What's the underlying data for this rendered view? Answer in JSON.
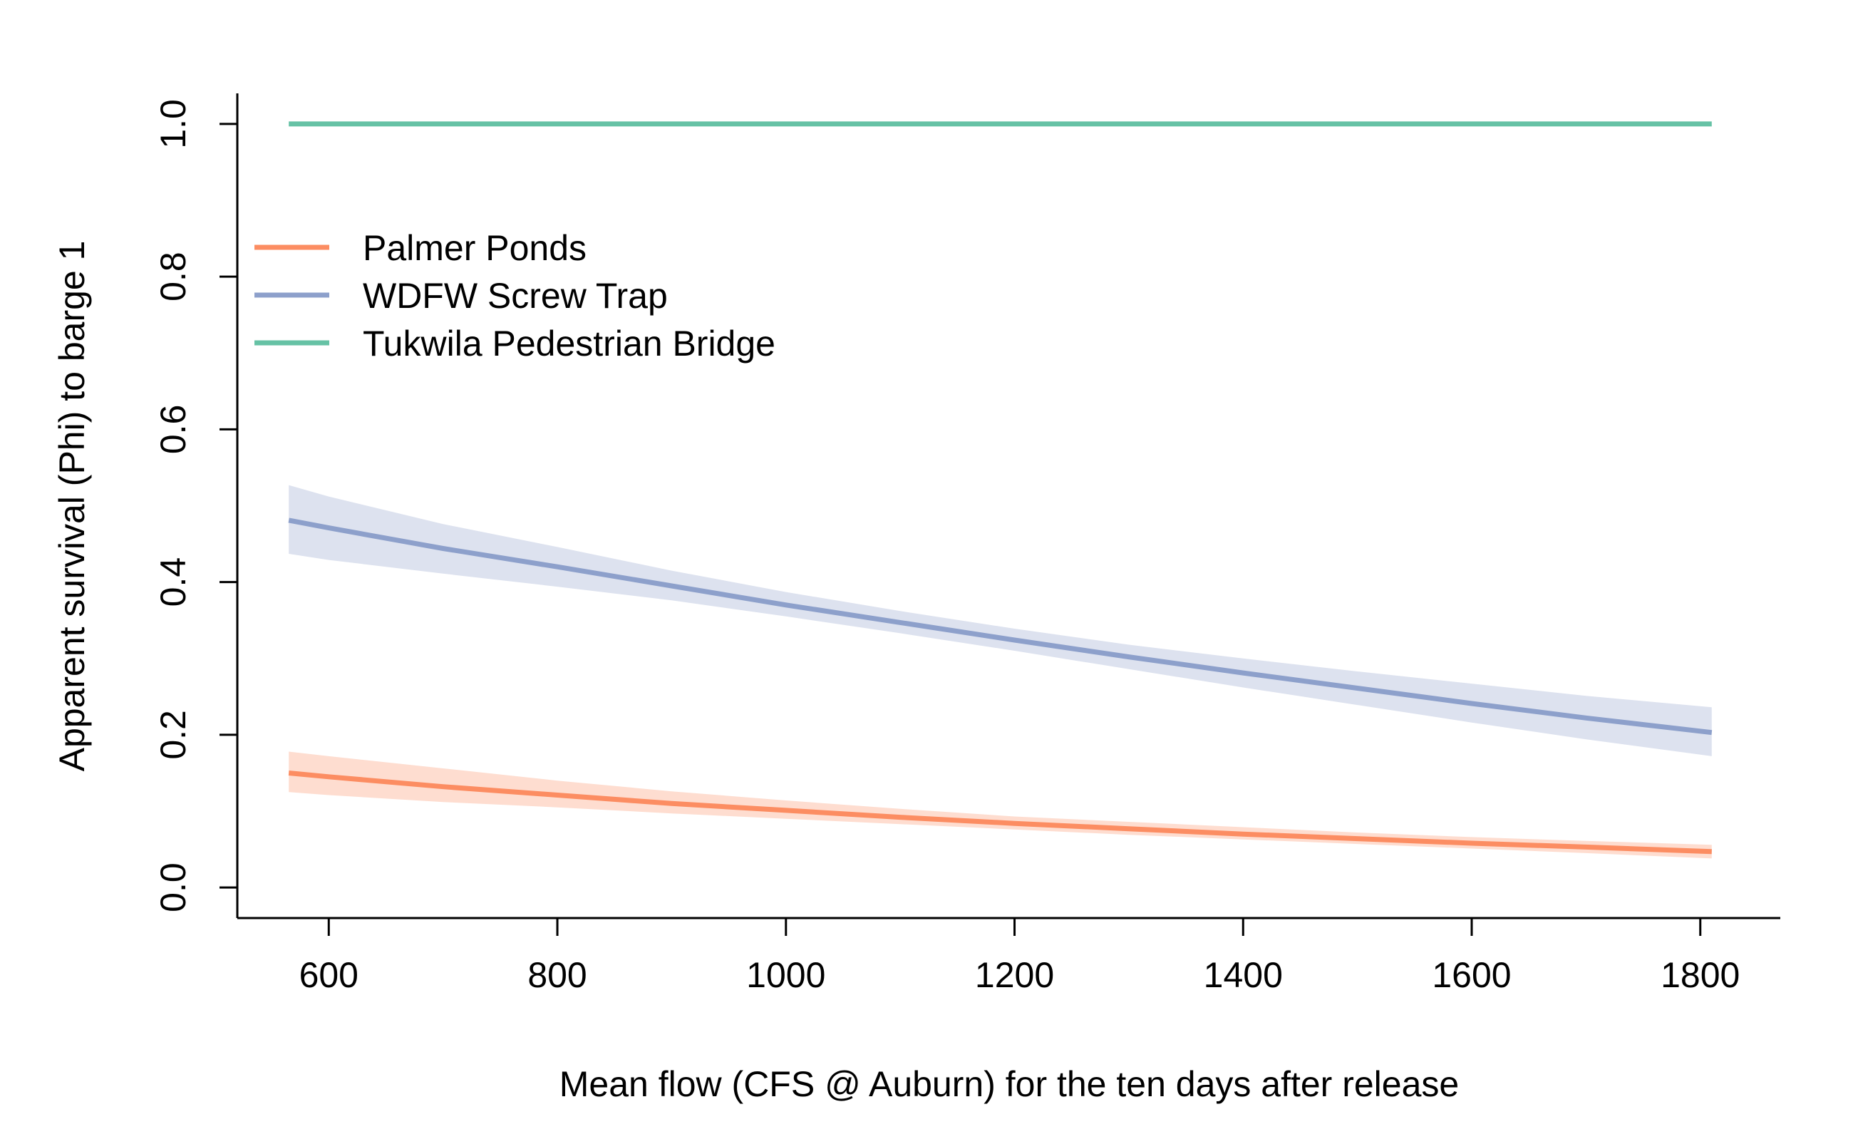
{
  "chart_data": {
    "type": "line",
    "title": "",
    "xlabel": "Mean flow (CFS @ Auburn) for the ten days after release",
    "ylabel": "Apparent survival (Phi) to barge 1",
    "xlim": [
      520,
      1870
    ],
    "ylim": [
      -0.04,
      1.04
    ],
    "xticks": [
      600,
      800,
      1000,
      1200,
      1400,
      1600,
      1800
    ],
    "xtick_labels": [
      "600",
      "800",
      "1000",
      "1200",
      "1400",
      "1600",
      "1800"
    ],
    "yticks": [
      0.0,
      0.2,
      0.4,
      0.6,
      0.8,
      1.0
    ],
    "ytick_labels": [
      "0.0",
      "0.2",
      "0.4",
      "0.6",
      "0.8",
      "1.0"
    ],
    "grid": false,
    "legend_position": "top-left",
    "x": [
      565,
      600,
      700,
      800,
      900,
      1000,
      1100,
      1200,
      1300,
      1400,
      1500,
      1600,
      1700,
      1810
    ],
    "series": [
      {
        "name": "Palmer Ponds",
        "color": "#FC8D62",
        "band_color": "#FC8D62",
        "values": [
          0.15,
          0.145,
          0.132,
          0.121,
          0.11,
          0.101,
          0.092,
          0.084,
          0.077,
          0.07,
          0.064,
          0.058,
          0.053,
          0.047
        ],
        "lower": [
          0.125,
          0.121,
          0.112,
          0.105,
          0.097,
          0.09,
          0.083,
          0.076,
          0.069,
          0.063,
          0.057,
          0.051,
          0.045,
          0.038
        ],
        "upper": [
          0.178,
          0.172,
          0.156,
          0.14,
          0.126,
          0.114,
          0.103,
          0.093,
          0.086,
          0.079,
          0.072,
          0.066,
          0.061,
          0.056
        ]
      },
      {
        "name": "WDFW Screw Trap",
        "color": "#8DA0CB",
        "band_color": "#8DA0CB",
        "values": [
          0.481,
          0.471,
          0.444,
          0.42,
          0.395,
          0.37,
          0.347,
          0.324,
          0.302,
          0.281,
          0.261,
          0.241,
          0.222,
          0.203
        ],
        "lower": [
          0.437,
          0.429,
          0.411,
          0.394,
          0.376,
          0.355,
          0.333,
          0.31,
          0.286,
          0.262,
          0.239,
          0.216,
          0.194,
          0.172
        ],
        "upper": [
          0.527,
          0.512,
          0.476,
          0.446,
          0.415,
          0.387,
          0.362,
          0.339,
          0.318,
          0.3,
          0.283,
          0.267,
          0.251,
          0.236
        ]
      },
      {
        "name": "Tukwila Pedestrian Bridge",
        "color": "#66C2A5",
        "band_color": "#66C2A5",
        "values": [
          1.0,
          1.0,
          1.0,
          1.0,
          1.0,
          1.0,
          1.0,
          1.0,
          1.0,
          1.0,
          1.0,
          1.0,
          1.0,
          1.0
        ],
        "lower": [
          1.0,
          1.0,
          1.0,
          1.0,
          1.0,
          1.0,
          1.0,
          1.0,
          1.0,
          1.0,
          1.0,
          1.0,
          1.0,
          1.0
        ],
        "upper": [
          1.0,
          1.0,
          1.0,
          1.0,
          1.0,
          1.0,
          1.0,
          1.0,
          1.0,
          1.0,
          1.0,
          1.0,
          1.0,
          1.0
        ]
      }
    ]
  }
}
